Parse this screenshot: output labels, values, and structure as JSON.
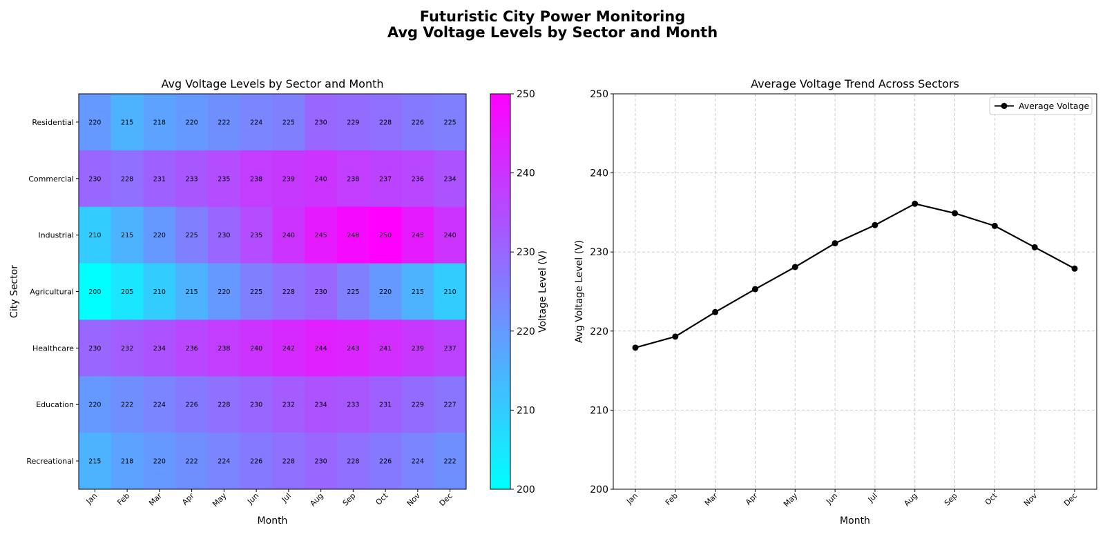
{
  "figure": {
    "title_line1": "Futuristic City Power Monitoring",
    "title_line2": "Avg Voltage Levels by Sector and Month"
  },
  "chart_data": [
    {
      "type": "heatmap",
      "title": "Avg Voltage Levels by Sector and Month",
      "xlabel": "Month",
      "ylabel": "City Sector",
      "colorbar_label": "Voltage Level (V)",
      "colormap": "cool",
      "colormap_colors": [
        "#00ffff",
        "#ff00ff"
      ],
      "vmin": 200,
      "vmax": 250,
      "colorbar_ticks": [
        200,
        210,
        220,
        230,
        240,
        250
      ],
      "x_categories": [
        "Jan",
        "Feb",
        "Mar",
        "Apr",
        "May",
        "Jun",
        "Jul",
        "Aug",
        "Sep",
        "Oct",
        "Nov",
        "Dec"
      ],
      "y_categories": [
        "Residential",
        "Commercial",
        "Industrial",
        "Agricultural",
        "Healthcare",
        "Education",
        "Recreational"
      ],
      "values": [
        [
          220,
          215,
          218,
          220,
          222,
          224,
          225,
          230,
          229,
          228,
          226,
          225
        ],
        [
          230,
          228,
          231,
          233,
          235,
          238,
          239,
          240,
          238,
          237,
          236,
          234
        ],
        [
          210,
          215,
          220,
          225,
          230,
          235,
          240,
          245,
          248,
          250,
          245,
          240
        ],
        [
          200,
          205,
          210,
          215,
          220,
          225,
          228,
          230,
          225,
          220,
          215,
          210
        ],
        [
          230,
          232,
          234,
          236,
          238,
          240,
          242,
          244,
          243,
          241,
          239,
          237
        ],
        [
          220,
          222,
          224,
          226,
          228,
          230,
          232,
          234,
          233,
          231,
          229,
          227
        ],
        [
          215,
          218,
          220,
          222,
          224,
          226,
          228,
          230,
          228,
          226,
          224,
          222
        ]
      ]
    },
    {
      "type": "line",
      "title": "Average Voltage Trend Across Sectors",
      "xlabel": "Month",
      "ylabel": "Avg Voltage Level (V)",
      "ylim": [
        200,
        250
      ],
      "y_ticks": [
        200,
        210,
        220,
        230,
        240,
        250
      ],
      "grid": true,
      "legend_position": "top-right",
      "categories": [
        "Jan",
        "Feb",
        "Mar",
        "Apr",
        "May",
        "Jun",
        "Jul",
        "Aug",
        "Sep",
        "Oct",
        "Nov",
        "Dec"
      ],
      "series": [
        {
          "name": "Average Voltage",
          "color": "#000000",
          "marker": "circle",
          "values": [
            217.9,
            219.3,
            222.4,
            225.3,
            228.1,
            231.1,
            233.4,
            236.1,
            234.9,
            233.3,
            230.6,
            227.9
          ]
        }
      ]
    }
  ]
}
